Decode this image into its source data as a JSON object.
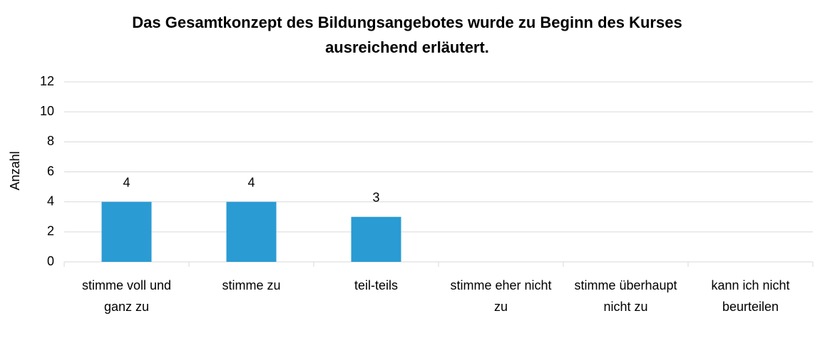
{
  "chart_data": {
    "type": "bar",
    "title": "Das Gesamtkonzept des Bildungsangebotes wurde zu Beginn des Kurses ausreichend erläutert.",
    "y_label": "Anzahl",
    "categories": [
      "stimme voll und ganz zu",
      "stimme zu",
      "teil-teils",
      "stimme eher nicht zu",
      "stimme überhaupt nicht zu",
      "kann ich nicht beurteilen"
    ],
    "values": [
      4,
      4,
      3,
      null,
      null,
      null
    ],
    "color": "#2a9bd3",
    "ylim": [
      0,
      12
    ],
    "yticks": [
      0,
      2,
      4,
      6,
      8,
      10,
      12
    ],
    "grid": true
  }
}
